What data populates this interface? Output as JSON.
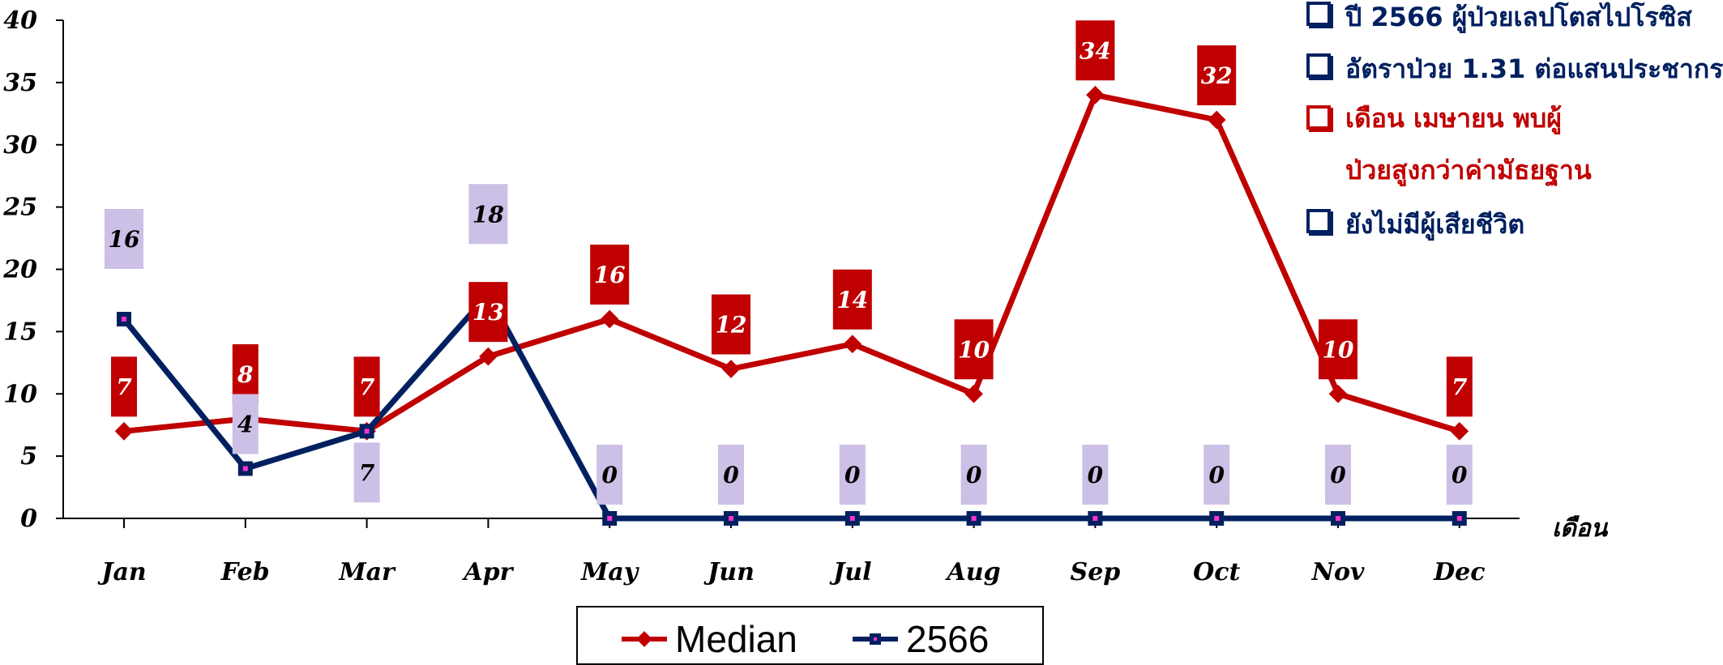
{
  "chart_data": {
    "type": "line",
    "categories": [
      "Jan",
      "Feb",
      "Mar",
      "Apr",
      "May",
      "Jun",
      "Jul",
      "Aug",
      "Sep",
      "Oct",
      "Nov",
      "Dec"
    ],
    "series": [
      {
        "name": "Median",
        "values": [
          7,
          8,
          7,
          13,
          16,
          12,
          14,
          10,
          34,
          32,
          10,
          7
        ],
        "color": "#c00000"
      },
      {
        "name": "2566",
        "values": [
          16,
          4,
          7,
          18,
          0,
          0,
          0,
          0,
          0,
          0,
          0,
          0
        ],
        "color": "#002060"
      }
    ],
    "yticks": [
      "0",
      "5",
      "10",
      "15",
      "20",
      "25",
      "30",
      "35",
      "40"
    ],
    "ylim": [
      0,
      40
    ],
    "xlabel": "เดือน",
    "ylabel": "",
    "title": "",
    "grid": false,
    "legend_position": "bottom"
  },
  "notes": [
    {
      "text": "ปี 2566 ผู้ป่วยเลปโตสไปโรซิส",
      "color": "#002060"
    },
    {
      "text": "อัตราป่วย 1.31 ต่อแสนประชากร",
      "color": "#002060"
    },
    {
      "text": "เดือน เมษายน พบผู้ป่วยสูงกว่าค่ามัธยฐาน",
      "color": "#c00000"
    },
    {
      "text": "ยังไม่มีผู้เสียชีวิต",
      "color": "#002060"
    }
  ]
}
